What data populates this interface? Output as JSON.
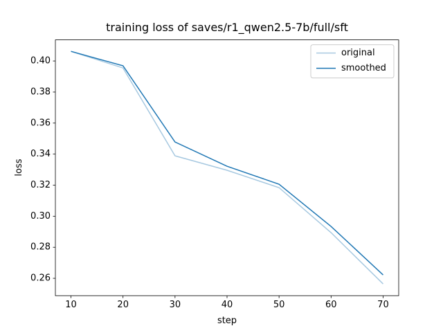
{
  "chart_data": {
    "type": "line",
    "title": "training loss of saves/r1_qwen2.5-7b/full/sft",
    "x_label": "step",
    "y_label": "loss",
    "x": [
      10,
      20,
      30,
      40,
      50,
      60,
      70
    ],
    "series": [
      {
        "name": "original",
        "color": "#a6c8e0",
        "values": [
          0.4062,
          0.3955,
          0.3389,
          0.3296,
          0.3184,
          0.2894,
          0.2564
        ]
      },
      {
        "name": "smoothed",
        "color": "#1f77b4",
        "values": [
          0.4062,
          0.3969,
          0.3478,
          0.3322,
          0.3206,
          0.2934,
          0.2622
        ]
      }
    ],
    "xlim": [
      7,
      73
    ],
    "xticks": [
      10,
      20,
      30,
      40,
      50,
      60,
      70
    ],
    "ylim": [
      0.2488,
      0.4136
    ],
    "yticks": [
      {
        "value": 0.26,
        "label": "0.26"
      },
      {
        "value": 0.28,
        "label": "0.28"
      },
      {
        "value": 0.3,
        "label": "0.30"
      },
      {
        "value": 0.32,
        "label": "0.32"
      },
      {
        "value": 0.34,
        "label": "0.34"
      },
      {
        "value": 0.36,
        "label": "0.36"
      },
      {
        "value": 0.38,
        "label": "0.38"
      },
      {
        "value": 0.4,
        "label": "0.40"
      }
    ],
    "legend_position": "upper right",
    "grid": false
  }
}
